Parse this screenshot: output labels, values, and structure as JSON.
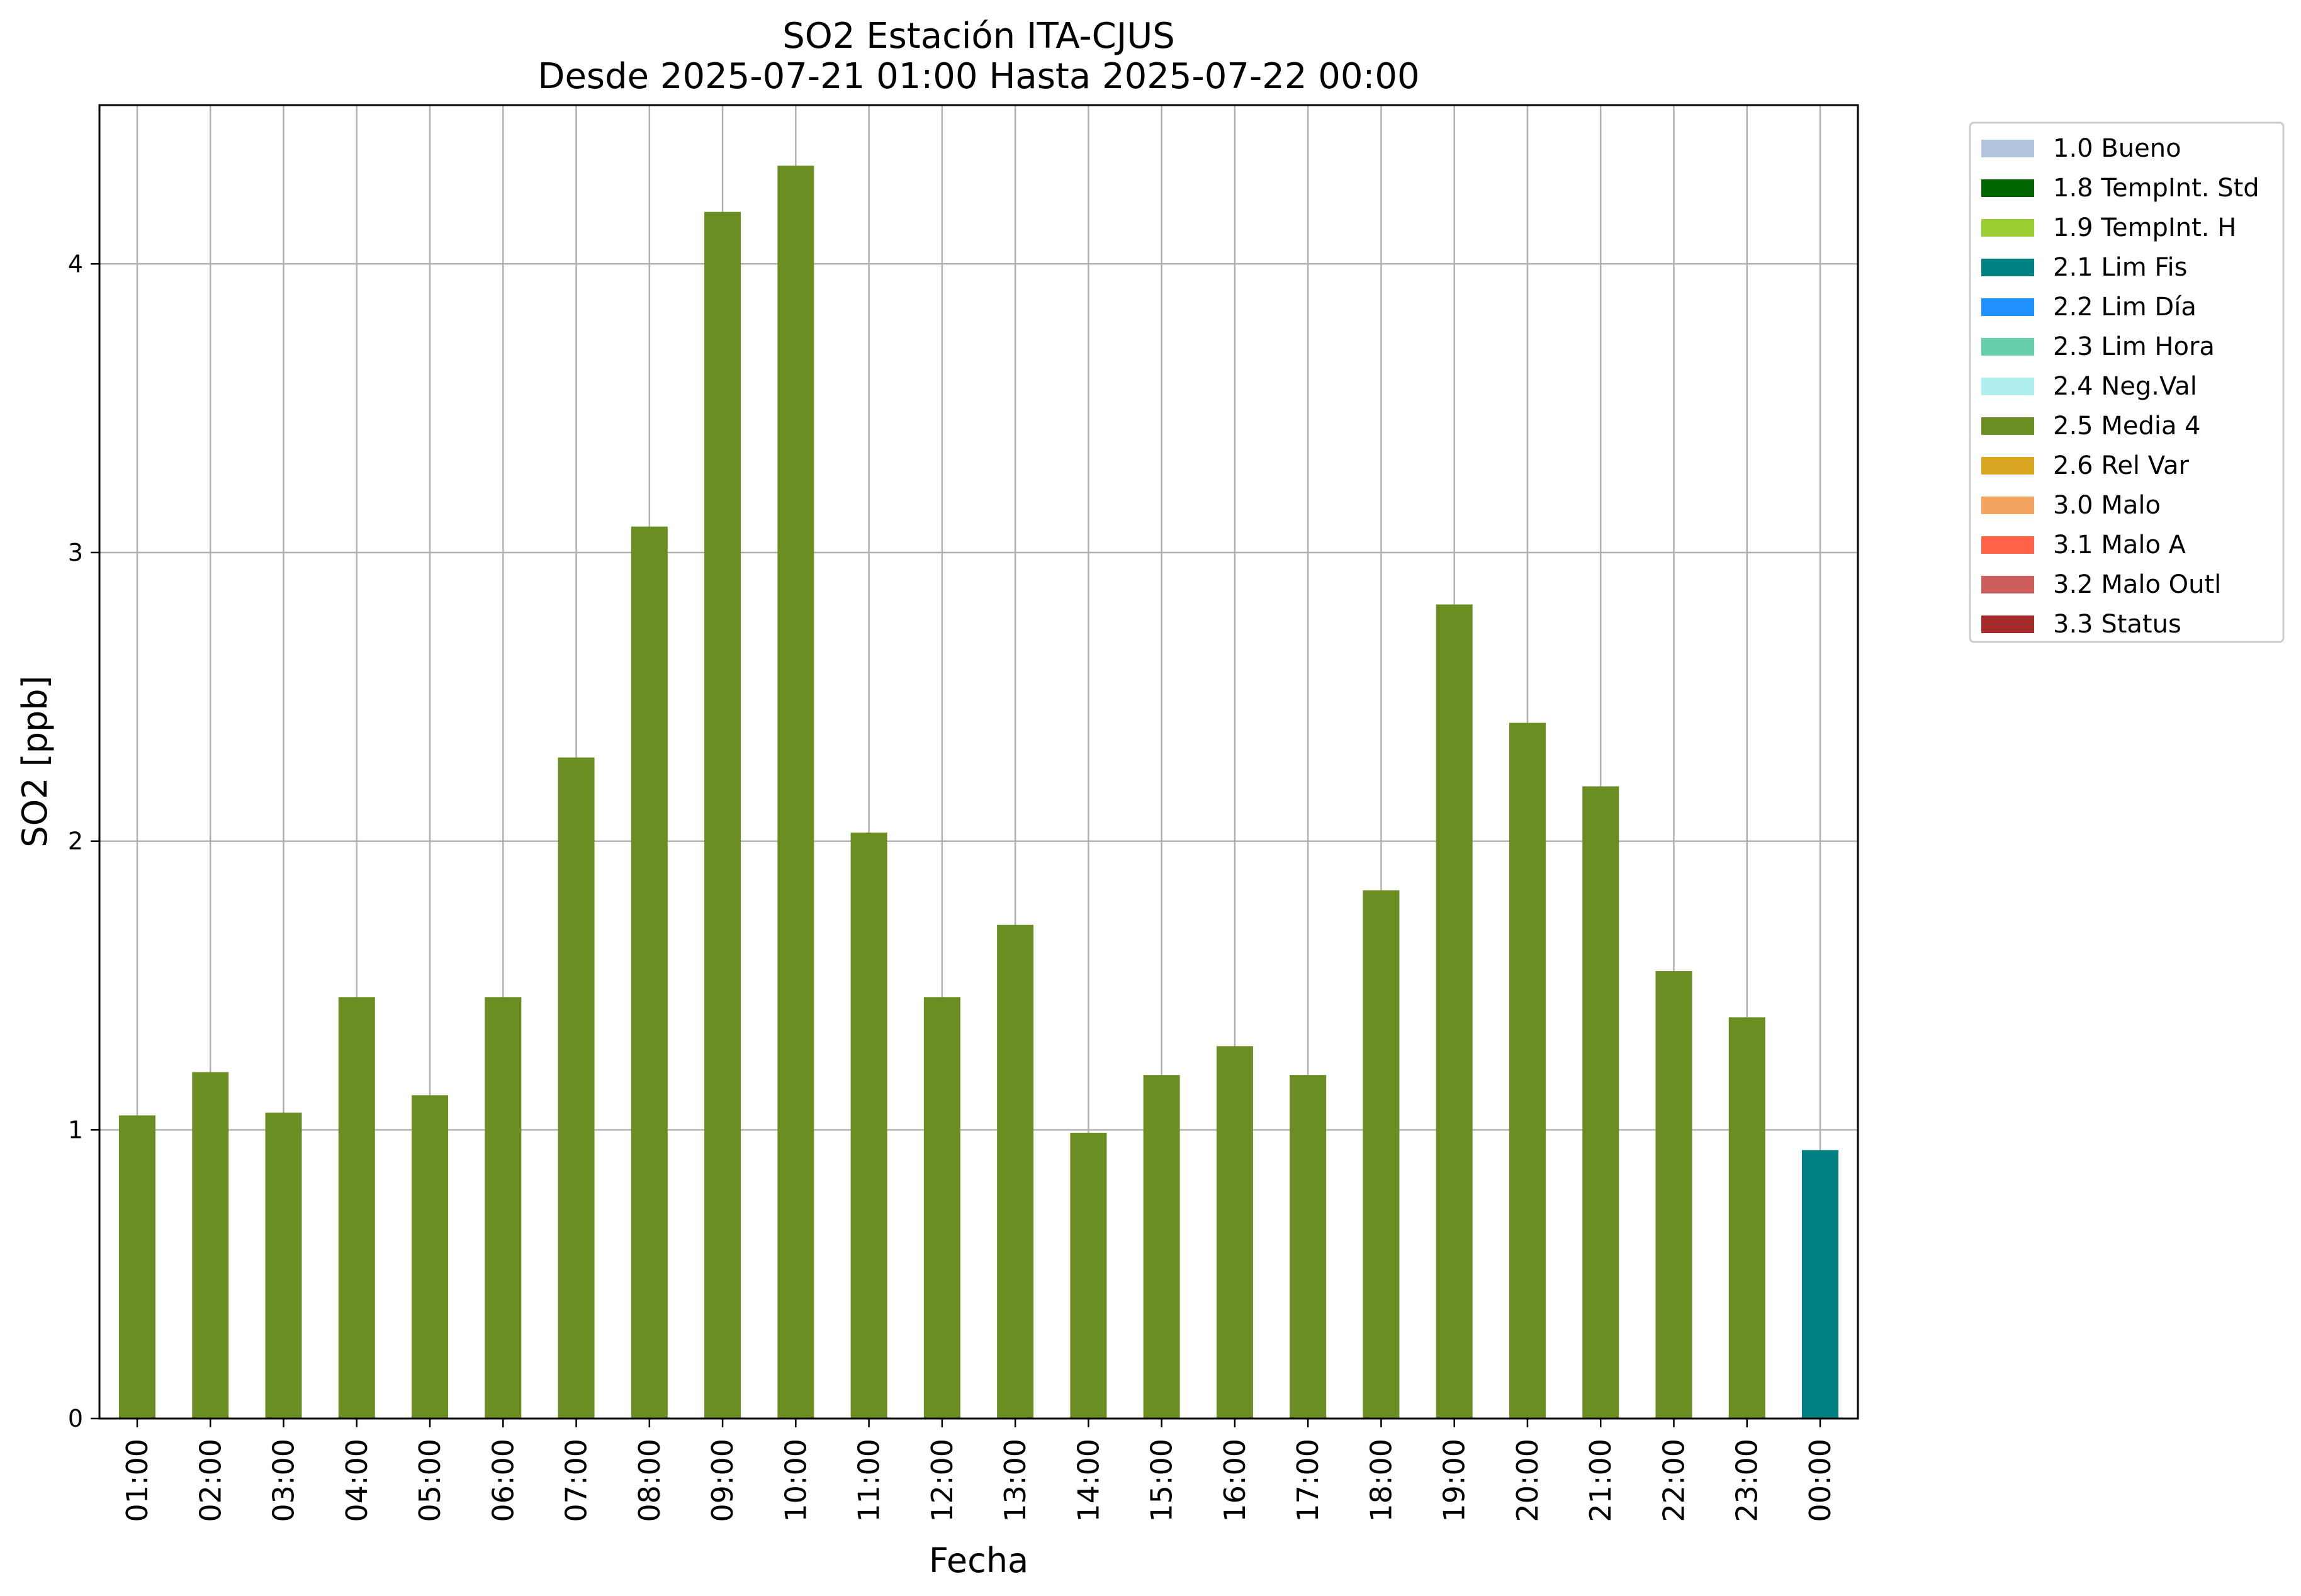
{
  "chart_data": {
    "type": "bar",
    "title": "SO2 Estación ITA-CJUS",
    "subtitle": "Desde 2025-07-21 01:00 Hasta 2025-07-22 00:00",
    "xlabel": "Fecha",
    "ylabel": "SO2 [ppb]",
    "ylim": [
      0,
      4.55
    ],
    "yticks": [
      0,
      1,
      2,
      3,
      4
    ],
    "grid": true,
    "legend_position": "outside top-right",
    "categories": [
      "01:00",
      "02:00",
      "03:00",
      "04:00",
      "05:00",
      "06:00",
      "07:00",
      "08:00",
      "09:00",
      "10:00",
      "11:00",
      "12:00",
      "13:00",
      "14:00",
      "15:00",
      "16:00",
      "17:00",
      "18:00",
      "19:00",
      "20:00",
      "21:00",
      "22:00",
      "23:00",
      "00:00"
    ],
    "values": [
      1.05,
      1.2,
      1.06,
      1.46,
      1.12,
      1.46,
      2.29,
      3.09,
      4.18,
      4.34,
      2.03,
      1.46,
      1.71,
      0.99,
      1.19,
      1.29,
      1.19,
      1.83,
      2.82,
      2.41,
      2.19,
      1.55,
      1.39,
      0.93
    ],
    "bar_flags": [
      "2.5 Media 4",
      "2.5 Media 4",
      "2.5 Media 4",
      "2.5 Media 4",
      "2.5 Media 4",
      "2.5 Media 4",
      "2.5 Media 4",
      "2.5 Media 4",
      "2.5 Media 4",
      "2.5 Media 4",
      "2.5 Media 4",
      "2.5 Media 4",
      "2.5 Media 4",
      "2.5 Media 4",
      "2.5 Media 4",
      "2.5 Media 4",
      "2.5 Media 4",
      "2.5 Media 4",
      "2.5 Media 4",
      "2.5 Media 4",
      "2.5 Media 4",
      "2.5 Media 4",
      "2.5 Media 4",
      "2.1 Lim Fis"
    ],
    "legend": [
      {
        "label": "1.0 Bueno",
        "color": "#b0c4de"
      },
      {
        "label": "1.8 TempInt. Std",
        "color": "#006400"
      },
      {
        "label": "1.9 TempInt. H",
        "color": "#9acd32"
      },
      {
        "label": "2.1 Lim Fis",
        "color": "#008080"
      },
      {
        "label": "2.2 Lim Día",
        "color": "#1e90ff"
      },
      {
        "label": "2.3 Lim Hora",
        "color": "#66cdaa"
      },
      {
        "label": "2.4 Neg.Val",
        "color": "#afeeee"
      },
      {
        "label": "2.5 Media 4",
        "color": "#6b8e23"
      },
      {
        "label": "2.6 Rel Var",
        "color": "#daa520"
      },
      {
        "label": "3.0 Malo",
        "color": "#f4a460"
      },
      {
        "label": "3.1 Malo A",
        "color": "#ff6347"
      },
      {
        "label": "3.2 Malo Outl",
        "color": "#cd5c5c"
      },
      {
        "label": "3.3 Status",
        "color": "#a52a2a"
      }
    ]
  }
}
